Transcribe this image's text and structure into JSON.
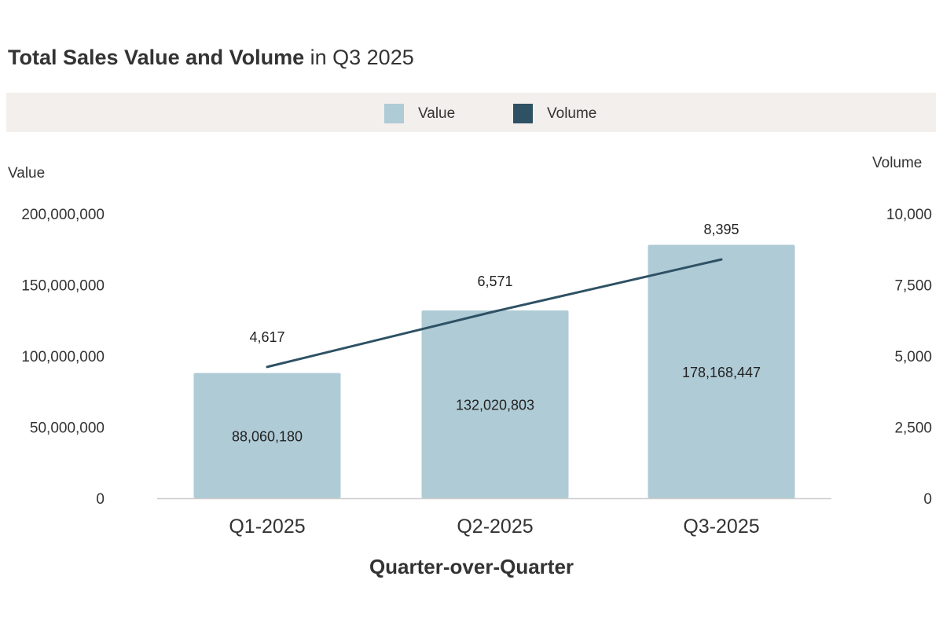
{
  "title": {
    "bold": "Total Sales Value and Volume",
    "rest": " in Q3 2025"
  },
  "colors": {
    "value": "#afcbd6",
    "volume": "#2e5164",
    "axis_line": "#cccccc",
    "legend_bg": "#f3efec",
    "text": "#333333"
  },
  "chart_data": {
    "type": "bar",
    "title": "Total Sales Value and Volume in Q3 2025",
    "categories": [
      "Q1-2025",
      "Q2-2025",
      "Q3-2025"
    ],
    "xlabel": "Quarter-over-Quarter",
    "legend": [
      "Value",
      "Volume"
    ],
    "legend_position": "top-center",
    "series": [
      {
        "name": "Value",
        "type": "bar",
        "axis": "left",
        "values": [
          88060180,
          132020803,
          178168447
        ],
        "labels": [
          "88,060,180",
          "132,020,803",
          "178,168,447"
        ]
      },
      {
        "name": "Volume",
        "type": "line",
        "axis": "right",
        "values": [
          4617,
          6571,
          8395
        ],
        "labels": [
          "4,617",
          "6,571",
          "8,395"
        ]
      }
    ],
    "y_left": {
      "label": "Value",
      "range": [
        0,
        200000000
      ],
      "ticks": [
        0,
        50000000,
        100000000,
        150000000,
        200000000
      ],
      "tick_labels": [
        "0",
        "50,000,000",
        "100,000,000",
        "150,000,000",
        "200,000,000"
      ]
    },
    "y_right": {
      "label": "Volume",
      "range": [
        0,
        10000
      ],
      "ticks": [
        0,
        2500,
        5000,
        7500,
        10000
      ],
      "tick_labels": [
        "0",
        "2,500",
        "5,000",
        "7,500",
        "10,000"
      ]
    },
    "grid": false
  }
}
